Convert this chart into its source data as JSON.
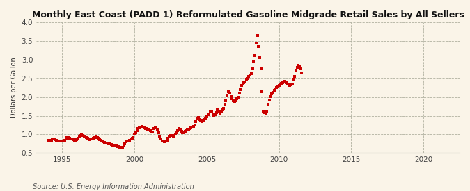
{
  "title": "Monthly East Coast (PADD 1) Reformulated Gasoline Midgrade Retail Sales by All Sellers",
  "ylabel": "Dollars per Gallon",
  "source": "Source: U.S. Energy Information Administration",
  "background_color": "#faf4e8",
  "plot_background_color": "#faf4e8",
  "marker_color": "#cc0000",
  "marker_size": 7,
  "xlim_start": 1993.2,
  "xlim_end": 2022.5,
  "ylim": [
    0.5,
    4.0
  ],
  "yticks": [
    0.5,
    1.0,
    1.5,
    2.0,
    2.5,
    3.0,
    3.5,
    4.0
  ],
  "xticks": [
    1995,
    2000,
    2005,
    2010,
    2015,
    2020
  ],
  "data": [
    [
      1994.0,
      0.83
    ],
    [
      1994.08,
      0.84
    ],
    [
      1994.17,
      0.82
    ],
    [
      1994.25,
      0.84
    ],
    [
      1994.33,
      0.87
    ],
    [
      1994.42,
      0.88
    ],
    [
      1994.5,
      0.86
    ],
    [
      1994.58,
      0.84
    ],
    [
      1994.67,
      0.83
    ],
    [
      1994.75,
      0.83
    ],
    [
      1994.83,
      0.82
    ],
    [
      1994.92,
      0.82
    ],
    [
      1995.0,
      0.82
    ],
    [
      1995.08,
      0.83
    ],
    [
      1995.17,
      0.85
    ],
    [
      1995.25,
      0.88
    ],
    [
      1995.33,
      0.91
    ],
    [
      1995.42,
      0.92
    ],
    [
      1995.5,
      0.9
    ],
    [
      1995.58,
      0.88
    ],
    [
      1995.67,
      0.87
    ],
    [
      1995.75,
      0.86
    ],
    [
      1995.83,
      0.85
    ],
    [
      1995.92,
      0.84
    ],
    [
      1996.0,
      0.86
    ],
    [
      1996.08,
      0.89
    ],
    [
      1996.17,
      0.93
    ],
    [
      1996.25,
      0.97
    ],
    [
      1996.33,
      1.0
    ],
    [
      1996.42,
      0.98
    ],
    [
      1996.5,
      0.96
    ],
    [
      1996.58,
      0.93
    ],
    [
      1996.67,
      0.91
    ],
    [
      1996.75,
      0.89
    ],
    [
      1996.83,
      0.87
    ],
    [
      1996.92,
      0.86
    ],
    [
      1997.0,
      0.87
    ],
    [
      1997.08,
      0.88
    ],
    [
      1997.17,
      0.89
    ],
    [
      1997.25,
      0.92
    ],
    [
      1997.33,
      0.93
    ],
    [
      1997.42,
      0.91
    ],
    [
      1997.5,
      0.89
    ],
    [
      1997.58,
      0.86
    ],
    [
      1997.67,
      0.84
    ],
    [
      1997.75,
      0.82
    ],
    [
      1997.83,
      0.8
    ],
    [
      1997.92,
      0.78
    ],
    [
      1998.0,
      0.77
    ],
    [
      1998.08,
      0.76
    ],
    [
      1998.17,
      0.74
    ],
    [
      1998.25,
      0.75
    ],
    [
      1998.33,
      0.74
    ],
    [
      1998.42,
      0.73
    ],
    [
      1998.5,
      0.72
    ],
    [
      1998.58,
      0.71
    ],
    [
      1998.67,
      0.7
    ],
    [
      1998.75,
      0.69
    ],
    [
      1998.83,
      0.68
    ],
    [
      1998.92,
      0.67
    ],
    [
      1999.0,
      0.66
    ],
    [
      1999.08,
      0.65
    ],
    [
      1999.17,
      0.66
    ],
    [
      1999.25,
      0.7
    ],
    [
      1999.33,
      0.75
    ],
    [
      1999.42,
      0.8
    ],
    [
      1999.5,
      0.82
    ],
    [
      1999.58,
      0.83
    ],
    [
      1999.67,
      0.85
    ],
    [
      1999.75,
      0.88
    ],
    [
      1999.83,
      0.9
    ],
    [
      1999.92,
      0.92
    ],
    [
      2000.0,
      1.01
    ],
    [
      2000.08,
      1.05
    ],
    [
      2000.17,
      1.1
    ],
    [
      2000.25,
      1.15
    ],
    [
      2000.33,
      1.18
    ],
    [
      2000.42,
      1.2
    ],
    [
      2000.5,
      1.21
    ],
    [
      2000.58,
      1.2
    ],
    [
      2000.67,
      1.18
    ],
    [
      2000.75,
      1.16
    ],
    [
      2000.83,
      1.15
    ],
    [
      2000.92,
      1.12
    ],
    [
      2001.0,
      1.12
    ],
    [
      2001.08,
      1.1
    ],
    [
      2001.17,
      1.08
    ],
    [
      2001.25,
      1.06
    ],
    [
      2001.33,
      1.15
    ],
    [
      2001.42,
      1.2
    ],
    [
      2001.5,
      1.18
    ],
    [
      2001.58,
      1.12
    ],
    [
      2001.67,
      1.05
    ],
    [
      2001.75,
      0.95
    ],
    [
      2001.83,
      0.88
    ],
    [
      2001.92,
      0.82
    ],
    [
      2002.0,
      0.83
    ],
    [
      2002.08,
      0.8
    ],
    [
      2002.17,
      0.82
    ],
    [
      2002.25,
      0.85
    ],
    [
      2002.33,
      0.9
    ],
    [
      2002.42,
      0.95
    ],
    [
      2002.5,
      0.98
    ],
    [
      2002.58,
      0.97
    ],
    [
      2002.67,
      0.96
    ],
    [
      2002.75,
      0.97
    ],
    [
      2002.83,
      1.0
    ],
    [
      2002.92,
      1.05
    ],
    [
      2003.0,
      1.1
    ],
    [
      2003.08,
      1.15
    ],
    [
      2003.17,
      1.12
    ],
    [
      2003.25,
      1.08
    ],
    [
      2003.33,
      1.05
    ],
    [
      2003.42,
      1.05
    ],
    [
      2003.5,
      1.08
    ],
    [
      2003.58,
      1.1
    ],
    [
      2003.67,
      1.12
    ],
    [
      2003.75,
      1.12
    ],
    [
      2003.83,
      1.15
    ],
    [
      2003.92,
      1.18
    ],
    [
      2004.0,
      1.2
    ],
    [
      2004.08,
      1.22
    ],
    [
      2004.17,
      1.25
    ],
    [
      2004.25,
      1.35
    ],
    [
      2004.33,
      1.42
    ],
    [
      2004.42,
      1.45
    ],
    [
      2004.5,
      1.4
    ],
    [
      2004.58,
      1.38
    ],
    [
      2004.67,
      1.35
    ],
    [
      2004.75,
      1.38
    ],
    [
      2004.83,
      1.4
    ],
    [
      2004.92,
      1.42
    ],
    [
      2005.0,
      1.48
    ],
    [
      2005.08,
      1.52
    ],
    [
      2005.17,
      1.55
    ],
    [
      2005.25,
      1.6
    ],
    [
      2005.33,
      1.62
    ],
    [
      2005.42,
      1.55
    ],
    [
      2005.5,
      1.5
    ],
    [
      2005.58,
      1.52
    ],
    [
      2005.67,
      1.58
    ],
    [
      2005.75,
      1.65
    ],
    [
      2005.83,
      1.6
    ],
    [
      2005.92,
      1.55
    ],
    [
      2006.0,
      1.6
    ],
    [
      2006.08,
      1.65
    ],
    [
      2006.17,
      1.7
    ],
    [
      2006.25,
      1.78
    ],
    [
      2006.33,
      1.9
    ],
    [
      2006.42,
      2.05
    ],
    [
      2006.5,
      2.15
    ],
    [
      2006.58,
      2.1
    ],
    [
      2006.67,
      2.02
    ],
    [
      2006.75,
      1.95
    ],
    [
      2006.83,
      1.9
    ],
    [
      2006.92,
      1.88
    ],
    [
      2007.0,
      1.9
    ],
    [
      2007.08,
      1.95
    ],
    [
      2007.17,
      2.0
    ],
    [
      2007.25,
      2.1
    ],
    [
      2007.33,
      2.2
    ],
    [
      2007.42,
      2.3
    ],
    [
      2007.5,
      2.35
    ],
    [
      2007.58,
      2.38
    ],
    [
      2007.67,
      2.4
    ],
    [
      2007.75,
      2.45
    ],
    [
      2007.83,
      2.5
    ],
    [
      2007.92,
      2.55
    ],
    [
      2008.0,
      2.58
    ],
    [
      2008.08,
      2.62
    ],
    [
      2008.17,
      2.75
    ],
    [
      2008.25,
      2.95
    ],
    [
      2008.33,
      3.1
    ],
    [
      2008.42,
      3.45
    ],
    [
      2008.5,
      3.65
    ],
    [
      2008.58,
      3.35
    ],
    [
      2008.67,
      3.05
    ],
    [
      2008.75,
      2.75
    ],
    [
      2008.83,
      2.15
    ],
    [
      2008.92,
      1.62
    ],
    [
      2009.0,
      1.58
    ],
    [
      2009.08,
      1.55
    ],
    [
      2009.17,
      1.62
    ],
    [
      2009.25,
      1.78
    ],
    [
      2009.33,
      1.92
    ],
    [
      2009.42,
      2.02
    ],
    [
      2009.5,
      2.08
    ],
    [
      2009.58,
      2.12
    ],
    [
      2009.67,
      2.18
    ],
    [
      2009.75,
      2.22
    ],
    [
      2009.83,
      2.25
    ],
    [
      2009.92,
      2.28
    ],
    [
      2010.0,
      2.3
    ],
    [
      2010.08,
      2.33
    ],
    [
      2010.17,
      2.36
    ],
    [
      2010.25,
      2.38
    ],
    [
      2010.33,
      2.4
    ],
    [
      2010.42,
      2.42
    ],
    [
      2010.5,
      2.38
    ],
    [
      2010.58,
      2.35
    ],
    [
      2010.67,
      2.32
    ],
    [
      2010.75,
      2.3
    ],
    [
      2010.83,
      2.32
    ],
    [
      2010.92,
      2.35
    ],
    [
      2011.0,
      2.45
    ],
    [
      2011.08,
      2.55
    ],
    [
      2011.17,
      2.7
    ],
    [
      2011.25,
      2.8
    ],
    [
      2011.33,
      2.85
    ],
    [
      2011.42,
      2.82
    ],
    [
      2011.5,
      2.75
    ],
    [
      2011.58,
      2.65
    ]
  ]
}
